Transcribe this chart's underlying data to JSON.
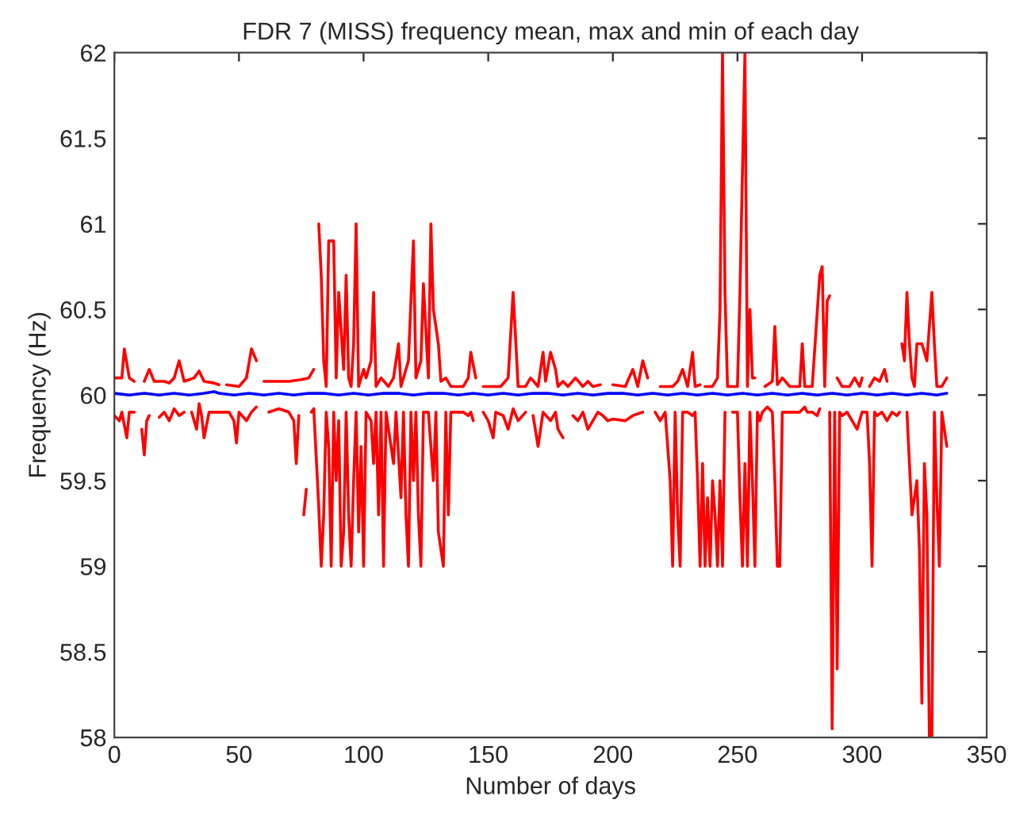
{
  "chart_data": {
    "type": "line",
    "title": "FDR 7 (MISS) frequency mean, max and min of each day",
    "xlabel": "Number of days",
    "ylabel": "Frequency (Hz)",
    "xlim": [
      0,
      350
    ],
    "xticks": [
      0,
      50,
      100,
      150,
      200,
      250,
      300,
      350
    ],
    "ylim": [
      58,
      62
    ],
    "yticks": [
      58,
      58.5,
      59,
      59.5,
      60,
      60.5,
      61,
      61.5,
      62
    ],
    "grid": false,
    "marker": "none",
    "line_style": "solid",
    "series": [
      {
        "color": "#ff0000",
        "x": [
          0,
          3,
          4,
          6,
          8,
          10,
          12,
          14,
          16,
          20,
          22,
          24,
          26,
          28,
          32,
          34,
          36,
          40,
          42,
          43,
          45,
          50,
          53,
          55,
          57,
          58,
          60,
          65,
          70,
          75,
          78,
          80,
          81,
          82,
          83,
          84,
          85,
          86,
          88,
          89,
          90,
          92,
          93,
          94,
          95,
          96,
          97,
          98,
          100,
          101,
          103,
          104,
          105,
          107,
          110,
          112,
          114,
          115,
          118,
          120,
          121,
          123,
          124,
          126,
          127,
          128,
          130,
          131,
          133,
          135,
          140,
          142,
          143,
          145,
          146,
          148,
          155,
          158,
          160,
          162,
          165,
          167,
          170,
          172,
          173,
          175,
          177,
          178,
          180,
          182,
          185,
          188,
          190,
          192,
          195,
          197,
          200,
          205,
          208,
          210,
          212,
          214,
          215,
          219,
          224,
          226,
          228,
          230,
          232,
          233,
          235,
          236,
          237,
          240,
          242,
          243,
          244,
          245,
          246,
          250,
          251,
          253,
          254,
          255,
          256,
          257,
          258,
          261,
          264,
          265,
          266,
          268,
          271,
          275,
          276,
          277,
          280,
          283,
          284,
          285,
          286,
          287,
          288,
          290,
          292,
          295,
          297,
          299,
          300,
          301,
          303,
          305,
          307,
          309,
          310,
          311,
          316,
          317,
          318,
          319,
          320,
          321,
          322,
          324,
          326,
          328,
          329,
          330,
          332,
          334
        ],
        "values": [
          60.1,
          60.1,
          60.27,
          60.1,
          60.08,
          null,
          60.08,
          60.15,
          60.08,
          60.08,
          60.07,
          60.1,
          60.2,
          60.08,
          60.1,
          60.14,
          60.08,
          60.07,
          60.06,
          null,
          60.06,
          60.05,
          60.1,
          60.27,
          60.2,
          null,
          60.08,
          60.08,
          60.08,
          60.09,
          60.1,
          60.15,
          null,
          61.0,
          60.7,
          60.2,
          60.05,
          60.9,
          60.9,
          60.1,
          60.6,
          60.15,
          60.7,
          60.1,
          60.05,
          60.3,
          61.0,
          60.05,
          60.15,
          60.1,
          60.2,
          60.6,
          60.05,
          60.1,
          60.05,
          60.1,
          60.3,
          60.05,
          60.2,
          60.9,
          60.1,
          60.2,
          60.65,
          60.1,
          61.0,
          60.5,
          60.3,
          60.08,
          60.1,
          60.05,
          60.05,
          60.1,
          60.25,
          60.1,
          null,
          60.05,
          60.05,
          60.1,
          60.6,
          60.05,
          60.05,
          60.1,
          60.05,
          60.25,
          60.08,
          60.25,
          60.15,
          60.05,
          60.08,
          60.05,
          60.1,
          60.05,
          60.08,
          60.05,
          60.06,
          null,
          60.06,
          60.05,
          60.15,
          60.05,
          60.2,
          60.1,
          null,
          60.05,
          60.05,
          60.08,
          60.15,
          60.05,
          60.25,
          60.05,
          60.06,
          null,
          60.05,
          60.05,
          60.1,
          60.5,
          62.0,
          60.6,
          60.05,
          60.05,
          60.6,
          62.0,
          60.05,
          60.5,
          60.1,
          60.1,
          null,
          60.05,
          60.08,
          60.4,
          60.06,
          60.1,
          60.05,
          60.05,
          60.3,
          60.05,
          60.05,
          60.7,
          60.75,
          60.05,
          60.55,
          60.58,
          null,
          60.1,
          60.05,
          60.05,
          60.1,
          60.05,
          60.1,
          null,
          60.05,
          60.1,
          60.08,
          60.15,
          60.08,
          null,
          60.3,
          60.2,
          60.6,
          60.3,
          60.1,
          60.05,
          60.3,
          60.3,
          60.2,
          60.6,
          60.3,
          60.05,
          60.05,
          60.1
        ]
      },
      {
        "color": "#0000ff",
        "x": [
          0,
          6,
          12,
          18,
          24,
          30,
          36,
          40,
          42,
          48,
          54,
          60,
          66,
          72,
          78,
          84,
          90,
          96,
          102,
          108,
          114,
          120,
          126,
          132,
          138,
          144,
          150,
          156,
          162,
          168,
          174,
          180,
          186,
          192,
          198,
          204,
          210,
          216,
          222,
          228,
          234,
          240,
          246,
          252,
          258,
          264,
          270,
          276,
          282,
          288,
          294,
          300,
          306,
          312,
          318,
          324,
          330,
          334
        ],
        "values": [
          60.01,
          60.0,
          60.01,
          60.0,
          60.01,
          60.0,
          60.01,
          60.02,
          60.01,
          60.0,
          60.01,
          60.0,
          60.01,
          60.0,
          60.01,
          60.01,
          60.0,
          60.01,
          60.0,
          60.01,
          60.01,
          60.0,
          60.01,
          60.01,
          60.0,
          60.01,
          60.0,
          60.01,
          60.0,
          60.01,
          60.01,
          60.0,
          60.01,
          60.0,
          60.01,
          60.01,
          60.0,
          60.01,
          60.0,
          60.01,
          60.0,
          60.01,
          60.0,
          60.01,
          60.0,
          60.01,
          60.0,
          60.01,
          60.0,
          60.01,
          60.0,
          60.01,
          60.0,
          60.01,
          60.0,
          60.01,
          60.0,
          60.01
        ]
      },
      {
        "color": "#ff0000",
        "x": [
          0,
          2,
          3,
          5,
          6,
          8,
          9,
          11,
          12,
          13,
          14,
          15,
          18,
          20,
          22,
          24,
          26,
          28,
          29,
          31,
          33,
          34,
          35,
          36,
          38,
          42,
          46,
          48,
          49,
          50,
          53,
          55,
          57,
          58,
          62,
          66,
          70,
          72,
          73,
          74,
          75,
          76,
          77,
          78,
          79,
          80,
          82,
          83,
          84,
          85,
          86,
          87,
          88,
          89,
          90,
          91,
          92,
          93,
          94,
          95,
          96,
          97,
          98,
          99,
          100,
          101,
          103,
          104,
          105,
          106,
          107,
          108,
          109,
          112,
          113,
          115,
          116,
          117,
          118,
          119,
          120,
          121,
          122,
          123,
          124,
          126,
          128,
          129,
          130,
          132,
          133,
          134,
          135,
          140,
          142,
          143,
          144,
          145,
          148,
          150,
          152,
          153,
          156,
          158,
          160,
          162,
          165,
          166,
          168,
          170,
          172,
          175,
          177,
          178,
          180,
          181,
          184,
          186,
          188,
          190,
          192,
          194,
          196,
          198,
          200,
          205,
          208,
          212,
          213,
          217,
          219,
          221,
          223,
          224,
          225,
          226,
          227,
          228,
          230,
          232,
          233,
          234,
          235,
          236,
          237,
          238,
          239,
          240,
          241,
          242,
          243,
          244,
          245,
          246,
          248,
          250,
          251,
          252,
          253,
          254,
          255,
          256,
          257,
          258,
          259,
          260,
          262,
          264,
          265,
          266,
          267,
          268,
          270,
          272,
          275,
          277,
          278,
          280,
          282,
          283,
          284,
          287,
          288,
          289,
          290,
          291,
          292,
          294,
          296,
          298,
          300,
          302,
          303,
          304,
          305,
          306,
          308,
          310,
          312,
          314,
          315,
          316,
          318,
          320,
          322,
          323,
          324,
          325,
          326,
          327,
          328,
          329,
          330,
          331,
          332,
          333,
          334
        ],
        "values": [
          59.88,
          59.85,
          59.9,
          59.75,
          59.9,
          59.9,
          null,
          59.8,
          59.65,
          59.85,
          59.88,
          null,
          59.87,
          59.9,
          59.85,
          59.92,
          59.88,
          59.9,
          null,
          59.9,
          59.8,
          59.95,
          59.88,
          59.75,
          59.9,
          59.9,
          59.9,
          59.85,
          59.72,
          59.9,
          59.85,
          59.9,
          59.93,
          null,
          59.9,
          59.92,
          59.9,
          59.85,
          59.6,
          59.88,
          null,
          59.3,
          59.45,
          null,
          59.9,
          59.92,
          59.35,
          59.0,
          59.3,
          59.9,
          59.7,
          59.0,
          59.9,
          59.5,
          59.85,
          59.0,
          59.2,
          59.9,
          59.3,
          59.0,
          59.5,
          59.9,
          59.2,
          59.7,
          59.0,
          59.9,
          59.85,
          59.6,
          59.9,
          59.3,
          59.9,
          59.0,
          59.9,
          59.6,
          59.9,
          59.4,
          59.9,
          59.3,
          59.0,
          59.9,
          59.5,
          59.9,
          59.3,
          59.0,
          59.9,
          59.9,
          59.5,
          59.9,
          59.2,
          59.0,
          59.9,
          59.3,
          59.9,
          59.9,
          59.88,
          59.9,
          59.85,
          null,
          59.9,
          59.85,
          59.75,
          59.9,
          59.88,
          59.8,
          59.92,
          59.85,
          59.9,
          null,
          59.88,
          59.7,
          59.9,
          59.85,
          59.9,
          59.8,
          59.75,
          null,
          59.88,
          59.85,
          59.9,
          59.8,
          59.85,
          59.9,
          59.88,
          59.85,
          59.86,
          59.85,
          59.88,
          59.9,
          null,
          59.9,
          59.85,
          59.9,
          59.5,
          59.0,
          59.9,
          59.3,
          59.0,
          59.9,
          59.9,
          59.88,
          59.9,
          59.5,
          59.0,
          59.6,
          59.0,
          59.4,
          59.0,
          59.5,
          59.3,
          59.0,
          59.5,
          59.0,
          59.9,
          null,
          59.9,
          59.9,
          59.4,
          59.0,
          59.6,
          59.0,
          59.9,
          59.5,
          59.0,
          59.9,
          59.85,
          59.9,
          59.93,
          59.9,
          59.5,
          59.0,
          59.0,
          59.9,
          59.9,
          59.9,
          59.9,
          59.93,
          59.9,
          59.9,
          59.88,
          59.92,
          null,
          59.9,
          58.05,
          59.9,
          58.4,
          59.9,
          59.88,
          59.9,
          59.85,
          59.8,
          59.9,
          59.9,
          59.6,
          59.0,
          59.9,
          59.88,
          59.9,
          59.85,
          59.9,
          59.88,
          59.9,
          null,
          59.9,
          59.3,
          59.5,
          59.1,
          58.2,
          59.6,
          59.3,
          58.0,
          58.0,
          59.9,
          59.4,
          59.0,
          59.9,
          59.8,
          59.7
        ]
      }
    ]
  }
}
